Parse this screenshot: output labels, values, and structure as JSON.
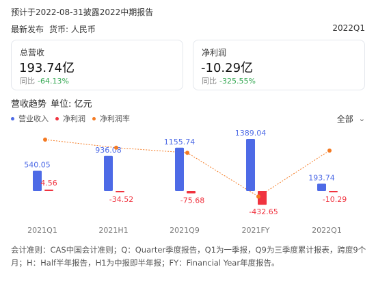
{
  "header": {
    "notice": "预计于2022-08-31披露2022中期报告",
    "latest": "最新发布",
    "currency": "货币: 人民币",
    "period": "2022Q1"
  },
  "cards": {
    "revenue": {
      "label": "总营收",
      "value": "193.74亿",
      "yoy_label": "同比",
      "yoy_value": "-64.13%"
    },
    "profit": {
      "label": "净利润",
      "value": "-10.29亿",
      "yoy_label": "同比",
      "yoy_value": "-325.55%"
    }
  },
  "trend": {
    "title": "营收趋势",
    "unit": "单位: 亿元",
    "range_label": "全部",
    "legend": [
      {
        "name": "营业收入",
        "color": "#4d6ae6"
      },
      {
        "name": "净利润",
        "color": "#f0333f"
      },
      {
        "name": "净利润率",
        "color": "#f47a22"
      }
    ]
  },
  "chart_data": {
    "type": "bar",
    "categories": [
      "2021Q1",
      "2021H1",
      "2021Q9",
      "2021FY",
      "2022Q1"
    ],
    "series": [
      {
        "name": "营业收入",
        "type": "bar",
        "color": "#4d6ae6",
        "values": [
          540.05,
          936.08,
          1155.74,
          1389.04,
          193.74
        ]
      },
      {
        "name": "净利润",
        "type": "bar",
        "color": "#f0333f",
        "values": [
          4.56,
          -34.52,
          -75.68,
          -432.65,
          -10.29
        ]
      },
      {
        "name": "净利润率",
        "type": "line",
        "color": "#f47a22",
        "values": [
          0.84,
          -3.69,
          -6.55,
          -31.15,
          -5.31
        ]
      }
    ],
    "value_labels": {
      "营业收入": [
        "540.05",
        "936.08",
        "1155.74",
        "1389.04",
        "193.74"
      ],
      "净利润": [
        "4.56",
        "-34.52",
        "-75.68",
        "-432.65",
        "-10.29"
      ]
    }
  },
  "footnote": "会计准则：CAS中国会计准则；Q：Quarter季度报告，Q1为一季报，Q9为三季度累计报表，跨度9个月；H：Half半年报告，H1为中报即半年报；FY：Financial Year年度报告。"
}
